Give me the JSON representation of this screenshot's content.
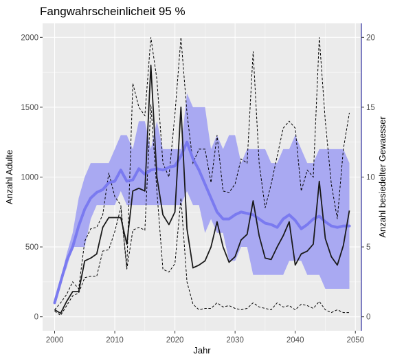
{
  "chart_data": {
    "type": "line",
    "title": "Fangwahrscheinlicheit 95 %",
    "xlabel": "Jahr",
    "ylabel": "Anzahl Adulte",
    "y2label": "Anzahl besiedelter Gewaesser",
    "xlim": [
      1998,
      2051
    ],
    "ylim": [
      -100,
      2100
    ],
    "y2lim": [
      -1,
      21
    ],
    "xticks": [
      2000,
      2010,
      2020,
      2030,
      2040,
      2050
    ],
    "yticks": [
      0,
      500,
      1000,
      1500,
      2000
    ],
    "y2ticks": [
      0,
      5,
      10,
      15,
      20
    ],
    "grid": true,
    "colors": {
      "panel": "#ebebeb",
      "grid": "#ffffff",
      "ribbon": "#a9a9f2",
      "waters_mean": "#7a7af0",
      "adults_mean": "#1a1a1a",
      "adults_bounds": "#000000",
      "y2_axis": "#00008b"
    },
    "x": [
      2000,
      2001,
      2002,
      2003,
      2004,
      2005,
      2006,
      2007,
      2008,
      2009,
      2010,
      2011,
      2012,
      2013,
      2014,
      2015,
      2016,
      2017,
      2018,
      2019,
      2020,
      2021,
      2022,
      2023,
      2024,
      2025,
      2026,
      2027,
      2028,
      2029,
      2030,
      2031,
      2032,
      2033,
      2034,
      2035,
      2036,
      2037,
      2038,
      2039,
      2040,
      2041,
      2042,
      2043,
      2044,
      2045,
      2046,
      2047,
      2048,
      2049
    ],
    "series": [
      {
        "name": "",
        "role": "adults_mean",
        "axis": "left",
        "style": "solid",
        "values": [
          50,
          25,
          110,
          180,
          180,
          400,
          420,
          450,
          640,
          710,
          710,
          710,
          520,
          900,
          920,
          900,
          1800,
          1000,
          730,
          660,
          750,
          1500,
          630,
          350,
          370,
          400,
          500,
          680,
          500,
          390,
          430,
          550,
          590,
          830,
          580,
          420,
          410,
          500,
          580,
          680,
          370,
          450,
          470,
          520,
          970,
          560,
          430,
          370,
          510,
          760
        ]
      },
      {
        "name": "",
        "role": "adults_upper",
        "axis": "left",
        "style": "dashed",
        "values": [
          50,
          100,
          160,
          250,
          200,
          540,
          630,
          640,
          730,
          1030,
          860,
          800,
          350,
          1670,
          1500,
          1440,
          2000,
          1700,
          1100,
          1000,
          1450,
          2000,
          1460,
          1100,
          1200,
          1200,
          960,
          1300,
          900,
          890,
          950,
          1130,
          1100,
          1900,
          1100,
          780,
          950,
          1150,
          1350,
          1400,
          1350,
          900,
          1050,
          1000,
          2000,
          1400,
          950,
          700,
          1200,
          1460
        ]
      },
      {
        "name": "",
        "role": "adults_lower",
        "axis": "left",
        "style": "dashed",
        "values": [
          40,
          10,
          80,
          150,
          170,
          280,
          290,
          290,
          470,
          480,
          610,
          780,
          340,
          620,
          640,
          620,
          1520,
          900,
          340,
          320,
          380,
          850,
          250,
          90,
          50,
          60,
          60,
          100,
          70,
          80,
          60,
          50,
          60,
          100,
          70,
          60,
          50,
          100,
          70,
          80,
          50,
          90,
          80,
          60,
          110,
          50,
          30,
          50,
          30,
          30
        ]
      },
      {
        "name": "",
        "role": "waters_mean",
        "axis": "right",
        "style": "solid",
        "values": [
          1,
          2.5,
          4,
          5,
          6.5,
          7.7,
          8.5,
          8.9,
          9.1,
          9.6,
          9.7,
          10.5,
          9.7,
          9.8,
          10.6,
          10.2,
          10.5,
          10.6,
          10.5,
          10.7,
          10.8,
          11.5,
          12.5,
          11.3,
          10.5,
          9.5,
          8.5,
          7.5,
          7.0,
          7.0,
          7.3,
          7.5,
          7.4,
          7.3,
          7.0,
          6.7,
          6.6,
          6.4,
          7.0,
          7.3,
          6.9,
          6.3,
          6.6,
          7.0,
          7.2,
          6.8,
          6.5,
          6.4,
          6.5,
          6.5
        ]
      },
      {
        "name": "",
        "role": "waters_upper",
        "axis": "right",
        "style": "ribbon",
        "values": [
          1,
          2.6,
          4.5,
          6,
          8.5,
          10,
          11,
          11,
          11,
          11,
          12,
          13,
          13,
          12,
          14,
          14,
          12,
          14,
          12,
          12,
          12,
          12,
          16,
          15,
          15,
          15,
          12,
          13,
          12,
          13,
          13,
          11,
          12,
          12,
          12,
          12,
          11,
          11,
          12,
          12,
          13,
          12,
          11,
          11,
          12,
          12,
          12,
          12,
          12,
          11
        ]
      },
      {
        "name": "",
        "role": "waters_lower",
        "axis": "right",
        "style": "ribbon",
        "values": [
          1,
          2.4,
          3.5,
          5,
          5,
          5,
          7,
          8,
          8,
          8,
          8,
          9,
          8,
          8,
          8,
          8,
          8,
          8,
          8,
          8,
          8,
          8,
          9,
          8,
          8,
          6,
          7,
          6,
          6,
          4,
          4,
          5,
          5,
          3,
          3,
          3,
          3,
          3,
          3,
          4,
          4,
          4,
          3,
          3,
          3,
          2,
          2,
          2,
          2,
          2
        ]
      }
    ]
  }
}
